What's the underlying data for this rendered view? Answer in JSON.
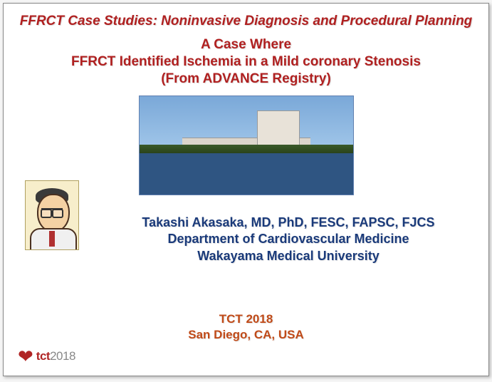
{
  "header": {
    "supertitle": "FFRCT Case Studies: Noninvasive Diagnosis and Procedural Planning",
    "subtitle_line1": "A Case Where",
    "subtitle_line2": "FFRCT Identified Ischemia in a Mild coronary Stenosis",
    "subtitle_line3": "(From ADVANCE Registry)"
  },
  "image": {
    "name": "hospital-photo",
    "alt": "Wakayama Medical University hospital waterfront"
  },
  "portrait": {
    "name": "speaker-portrait",
    "alt": "Illustrated portrait of speaker"
  },
  "author": {
    "name": "Takashi Akasaka, MD, PhD, FESC, FAPSC, FJCS",
    "dept": "Department of Cardiovascular Medicine",
    "univ": "Wakayama Medical University"
  },
  "conference": {
    "name": "TCT 2018",
    "location": "San Diego, CA, USA"
  },
  "logo": {
    "brand": "tct",
    "year": "2018"
  },
  "colors": {
    "title_red": "#b02020",
    "author_blue": "#1a3a7a",
    "conf_orange": "#c04a18",
    "logo_red": "#b02525",
    "logo_gray": "#888888",
    "background": "#ffffff"
  },
  "typography": {
    "title_fontsize": 19,
    "subtitle_fontsize": 19,
    "author_fontsize": 18,
    "conf_fontsize": 17,
    "logo_fontsize": 17
  }
}
